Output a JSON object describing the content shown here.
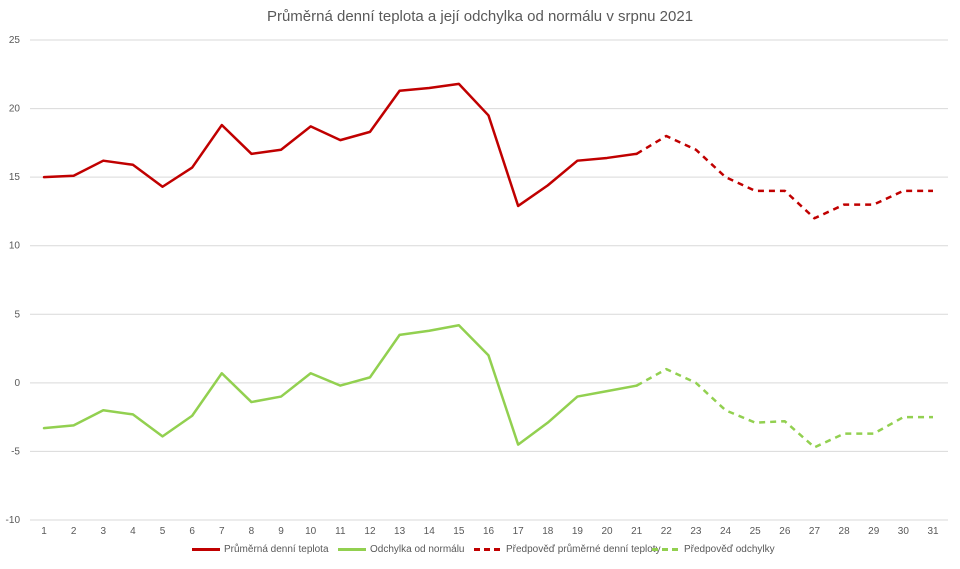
{
  "chart_data": {
    "type": "line",
    "title": "Průměrná denní teplota a její odchylka od normálu v srpnu 2021",
    "xlabel": "",
    "ylabel": "",
    "x": [
      "1",
      "2",
      "3",
      "4",
      "5",
      "6",
      "7",
      "8",
      "9",
      "10",
      "11",
      "12",
      "13",
      "14",
      "15",
      "16",
      "17",
      "18",
      "19",
      "20",
      "21",
      "22",
      "23",
      "24",
      "25",
      "26",
      "27",
      "28",
      "29",
      "30",
      "31"
    ],
    "ylim": [
      -10,
      25
    ],
    "yticks": [
      "25",
      "20",
      "15",
      "10",
      "5",
      "0",
      "-5",
      "-10"
    ],
    "yticks_values": [
      25,
      20,
      15,
      10,
      5,
      0,
      -5,
      -10
    ],
    "grid": true,
    "legend_position": "bottom",
    "series": [
      {
        "name": "Průměrná denní teplota",
        "color": "#C00000",
        "dashed": false,
        "values": [
          15.0,
          15.1,
          16.2,
          15.9,
          14.3,
          15.7,
          18.8,
          16.7,
          17.0,
          18.7,
          17.7,
          18.3,
          21.3,
          21.5,
          21.8,
          19.5,
          12.9,
          14.4,
          16.2,
          16.4,
          16.7,
          null,
          null,
          null,
          null,
          null,
          null,
          null,
          null,
          null,
          null
        ]
      },
      {
        "name": "Odchylka od normálu",
        "color": "#92D050",
        "dashed": false,
        "values": [
          -3.3,
          -3.1,
          -2.0,
          -2.3,
          -3.9,
          -2.4,
          0.7,
          -1.4,
          -1.0,
          0.7,
          -0.2,
          0.4,
          3.5,
          3.8,
          4.2,
          2.0,
          -4.5,
          -2.9,
          -1.0,
          -0.6,
          -0.2,
          null,
          null,
          null,
          null,
          null,
          null,
          null,
          null,
          null,
          null
        ]
      },
      {
        "name": "Předpověď průměrné denní teploty",
        "color": "#C00000",
        "dashed": true,
        "values": [
          null,
          null,
          null,
          null,
          null,
          null,
          null,
          null,
          null,
          null,
          null,
          null,
          null,
          null,
          null,
          null,
          null,
          null,
          null,
          null,
          16.7,
          18.0,
          17.0,
          15.0,
          14.0,
          14.0,
          12.0,
          13.0,
          13.0,
          14.0,
          14.0
        ]
      },
      {
        "name": "Předpověď odchylky",
        "color": "#92D050",
        "dashed": true,
        "values": [
          null,
          null,
          null,
          null,
          null,
          null,
          null,
          null,
          null,
          null,
          null,
          null,
          null,
          null,
          null,
          null,
          null,
          null,
          null,
          null,
          -0.2,
          1.0,
          0.0,
          -2.0,
          -2.9,
          -2.8,
          -4.7,
          -3.7,
          -3.7,
          -2.5,
          -2.5
        ]
      }
    ]
  }
}
